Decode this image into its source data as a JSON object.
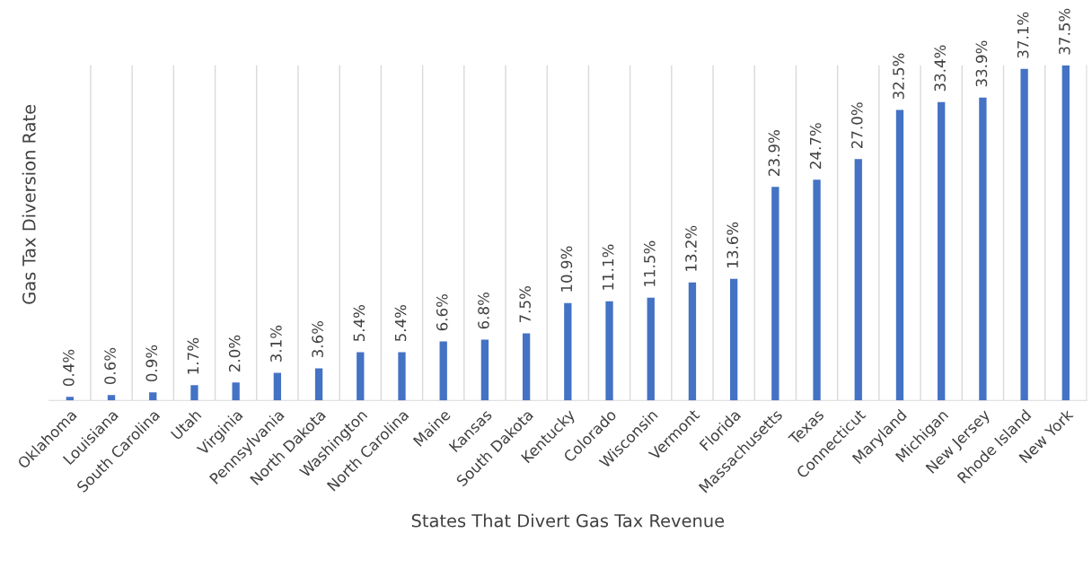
{
  "chart_data": {
    "type": "bar",
    "xlabel": "States That Divert Gas Tax Revenue",
    "ylabel": "Gas Tax Diversion Rate",
    "categories": [
      "Oklahoma",
      "Louisiana",
      "South Carolina",
      "Utah",
      "Virginia",
      "Pennsylvania",
      "North Dakota",
      "Washington",
      "North Carolina",
      "Maine",
      "Kansas",
      "South Dakota",
      "Kentucky",
      "Colorado",
      "Wisconsin",
      "Vermont",
      "Florida",
      "Massachusetts",
      "Texas",
      "Connecticut",
      "Maryland",
      "Michigan",
      "New Jersey",
      "Rhode Island",
      "New York"
    ],
    "values": [
      0.4,
      0.6,
      0.9,
      1.7,
      2.0,
      3.1,
      3.6,
      5.4,
      5.4,
      6.6,
      6.8,
      7.5,
      10.9,
      11.1,
      11.5,
      13.2,
      13.6,
      23.9,
      24.7,
      27.0,
      32.5,
      33.4,
      33.9,
      37.1,
      37.5
    ],
    "value_labels": [
      "0.4%",
      "0.6%",
      "0.9%",
      "1.7%",
      "2.0%",
      "3.1%",
      "3.6%",
      "5.4%",
      "5.4%",
      "6.6%",
      "6.8%",
      "7.5%",
      "10.9%",
      "11.1%",
      "11.5%",
      "13.2%",
      "13.6%",
      "23.9%",
      "24.7%",
      "27.0%",
      "32.5%",
      "33.4%",
      "33.9%",
      "37.1%",
      "37.5%"
    ],
    "color": "#4472c4",
    "grid": "x",
    "tick_labels": "x"
  }
}
